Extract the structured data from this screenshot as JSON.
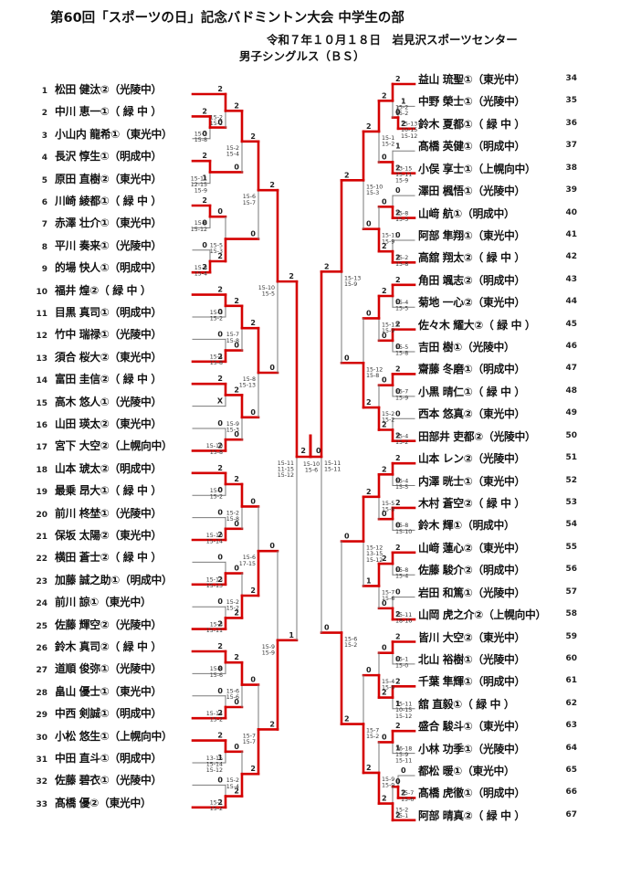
{
  "header": {
    "title": "第60回「スポーツの日」記念バドミントン大会 中学生の部",
    "date_venue": "令和７年１０月１８日　岩見沢スポーツセンター",
    "event": "男子シングルス（ＢＳ）"
  },
  "colors": {
    "winner_line": "#d40000",
    "loser_line": "#7a7a7a",
    "text": "#111111"
  },
  "players_left": [
    {
      "n": 1,
      "name": "松田 健汰",
      "grade": "②",
      "school": "光陵中"
    },
    {
      "n": 2,
      "name": "中川 恵一",
      "grade": "①",
      "school": " 緑 中 "
    },
    {
      "n": 3,
      "name": "小山内 龍希",
      "grade": "①",
      "school": "東光中"
    },
    {
      "n": 4,
      "name": "長沢 惇生",
      "grade": "①",
      "school": "明成中"
    },
    {
      "n": 5,
      "name": "原田 直樹",
      "grade": "②",
      "school": "東光中"
    },
    {
      "n": 6,
      "name": "川崎 綾都",
      "grade": "①",
      "school": " 緑 中 "
    },
    {
      "n": 7,
      "name": "赤澤 壮介",
      "grade": "①",
      "school": "東光中"
    },
    {
      "n": 8,
      "name": "平川 奏来",
      "grade": "①",
      "school": "光陵中"
    },
    {
      "n": 9,
      "name": "的場 快人",
      "grade": "①",
      "school": "明成中"
    },
    {
      "n": 10,
      "name": "福井 煌",
      "grade": "②",
      "school": " 緑 中 "
    },
    {
      "n": 11,
      "name": "目黒 真司",
      "grade": "①",
      "school": "明成中"
    },
    {
      "n": 12,
      "name": "竹中 瑞禄",
      "grade": "①",
      "school": "光陵中"
    },
    {
      "n": 13,
      "name": "須合 桜大",
      "grade": "②",
      "school": "東光中"
    },
    {
      "n": 14,
      "name": "富田 圭信",
      "grade": "②",
      "school": " 緑 中 "
    },
    {
      "n": 15,
      "name": "高木 悠人",
      "grade": "①",
      "school": "光陵中"
    },
    {
      "n": 16,
      "name": "山田 瑛太",
      "grade": "②",
      "school": "東光中"
    },
    {
      "n": 17,
      "name": "宮下 大空",
      "grade": "②",
      "school": "上幌向中"
    },
    {
      "n": 18,
      "name": "山本 琥太",
      "grade": "②",
      "school": "明成中"
    },
    {
      "n": 19,
      "name": "最乗 昂大",
      "grade": "①",
      "school": " 緑 中 "
    },
    {
      "n": 20,
      "name": "前川 柊埜",
      "grade": "①",
      "school": "光陵中"
    },
    {
      "n": 21,
      "name": "保坂 太陽",
      "grade": "②",
      "school": "東光中"
    },
    {
      "n": 22,
      "name": "横田 蒼士",
      "grade": "②",
      "school": " 緑 中 "
    },
    {
      "n": 23,
      "name": "加藤 誠之助",
      "grade": "①",
      "school": "明成中"
    },
    {
      "n": 24,
      "name": "前川 諒",
      "grade": "①",
      "school": "東光中"
    },
    {
      "n": 25,
      "name": "佐藤 輝空",
      "grade": "②",
      "school": "光陵中"
    },
    {
      "n": 26,
      "name": "鈴木 真司",
      "grade": "②",
      "school": " 緑 中 "
    },
    {
      "n": 27,
      "name": "道順 俊弥",
      "grade": "①",
      "school": "光陵中"
    },
    {
      "n": 28,
      "name": "畠山 優士",
      "grade": "①",
      "school": "東光中"
    },
    {
      "n": 29,
      "name": "中西 剣誠",
      "grade": "①",
      "school": "明成中"
    },
    {
      "n": 30,
      "name": "小松 悠生",
      "grade": "①",
      "school": "上幌向中"
    },
    {
      "n": 31,
      "name": "中田 直斗",
      "grade": "①",
      "school": "明成中"
    },
    {
      "n": 32,
      "name": "佐藤 碧衣",
      "grade": "①",
      "school": "光陵中"
    },
    {
      "n": 33,
      "name": "髙橋 優",
      "grade": "②",
      "school": "東光中"
    }
  ],
  "players_right": [
    {
      "n": 34,
      "name": "益山 琉聖",
      "grade": "①",
      "school": "東光中"
    },
    {
      "n": 35,
      "name": "中野 榮士",
      "grade": "①",
      "school": "光陵中"
    },
    {
      "n": 36,
      "name": "鈴木 夏都",
      "grade": "①",
      "school": " 緑 中 "
    },
    {
      "n": 37,
      "name": "髙橋 英健",
      "grade": "①",
      "school": "明成中"
    },
    {
      "n": 38,
      "name": "小俣 享士",
      "grade": "①",
      "school": "上幌向中"
    },
    {
      "n": 39,
      "name": "澤田 楓悟",
      "grade": "①",
      "school": "光陵中"
    },
    {
      "n": 40,
      "name": "山﨑 航",
      "grade": "①",
      "school": "明成中"
    },
    {
      "n": 41,
      "name": "阿部 隼翔",
      "grade": "①",
      "school": "東光中"
    },
    {
      "n": 42,
      "name": "高舘 翔太",
      "grade": "②",
      "school": " 緑 中 "
    },
    {
      "n": 43,
      "name": "角田 颯志",
      "grade": "②",
      "school": "明成中"
    },
    {
      "n": 44,
      "name": "菊地 一心",
      "grade": "②",
      "school": "東光中"
    },
    {
      "n": 45,
      "name": "佐々木 耀大",
      "grade": "②",
      "school": " 緑 中 "
    },
    {
      "n": 46,
      "name": "吉田 樹",
      "grade": "①",
      "school": "光陵中"
    },
    {
      "n": 47,
      "name": "齋藤 冬磨",
      "grade": "①",
      "school": "明成中"
    },
    {
      "n": 48,
      "name": "小黒 晴仁",
      "grade": "①",
      "school": " 緑 中 "
    },
    {
      "n": 49,
      "name": "西本 悠真",
      "grade": "②",
      "school": "東光中"
    },
    {
      "n": 50,
      "name": "田部井 吏都",
      "grade": "②",
      "school": "光陵中"
    },
    {
      "n": 51,
      "name": "山本 レン",
      "grade": "②",
      "school": "光陵中"
    },
    {
      "n": 52,
      "name": "内澤 晄士",
      "grade": "①",
      "school": "東光中"
    },
    {
      "n": 53,
      "name": "木村 蒼空",
      "grade": "②",
      "school": " 緑 中 "
    },
    {
      "n": 54,
      "name": "鈴木 輝",
      "grade": "①",
      "school": "明成中"
    },
    {
      "n": 55,
      "name": "山﨑 蓮心",
      "grade": "②",
      "school": "東光中"
    },
    {
      "n": 56,
      "name": "佐藤 駿介",
      "grade": "②",
      "school": "明成中"
    },
    {
      "n": 57,
      "name": "岩田 和篤",
      "grade": "①",
      "school": "光陵中"
    },
    {
      "n": 58,
      "name": "山岡 虎之介",
      "grade": "②",
      "school": "上幌向中"
    },
    {
      "n": 59,
      "name": "皆川 大空",
      "grade": "②",
      "school": "東光中"
    },
    {
      "n": 60,
      "name": "北山 裕樹",
      "grade": "①",
      "school": "光陵中"
    },
    {
      "n": 61,
      "name": "千葉 隼輝",
      "grade": "①",
      "school": "明成中"
    },
    {
      "n": 62,
      "name": "舘 直毅",
      "grade": "①",
      "school": " 緑 中 "
    },
    {
      "n": 63,
      "name": "盛合 駿斗",
      "grade": "①",
      "school": "東光中"
    },
    {
      "n": 64,
      "name": "小林 功季",
      "grade": "①",
      "school": "光陵中"
    },
    {
      "n": 65,
      "name": "都松 暖",
      "grade": "①",
      "school": "東光中"
    },
    {
      "n": 66,
      "name": "髙橋 虎徹",
      "grade": "①",
      "school": "明成中"
    },
    {
      "n": 67,
      "name": "阿部 晴真",
      "grade": "②",
      "school": " 緑 中 "
    }
  ],
  "matches_left": [
    {
      "id": "L1",
      "r": "p",
      "t": "p2",
      "b": "p3",
      "w": "t",
      "gt": "2",
      "gb": "0",
      "s": [
        "15-1",
        "15-8"
      ]
    },
    {
      "id": "L2",
      "r": "r1",
      "t": "p1",
      "b": "L1",
      "w": "t",
      "gt": "2",
      "gb": "0",
      "s": [
        "15-2",
        "15-2"
      ]
    },
    {
      "id": "L3",
      "r": "p",
      "t": "p4",
      "b": "p5",
      "w": "t",
      "gt": "2",
      "gb": "1",
      "s": [
        "15-11",
        "12-15",
        "15-9"
      ]
    },
    {
      "id": "L4",
      "r": "r2",
      "t": "L2",
      "b": "L3",
      "w": "t",
      "gt": "2",
      "gb": "0",
      "s": [
        "15-2",
        "15-4"
      ]
    },
    {
      "id": "L5",
      "r": "p",
      "t": "p6",
      "b": "p7",
      "w": "t",
      "gt": "2",
      "gb": "0",
      "s": [
        "15-6",
        "15-12"
      ]
    },
    {
      "id": "L6",
      "r": "p",
      "t": "p8",
      "b": "p9",
      "w": "b",
      "gt": "0",
      "gb": "2",
      "s": [
        "15-8",
        "15-4"
      ]
    },
    {
      "id": "L7",
      "r": "r1",
      "t": "L5",
      "b": "L6",
      "w": "b",
      "gt": "0",
      "gb": "2",
      "s": [
        "15-5",
        "15-3"
      ]
    },
    {
      "id": "L8",
      "r": "bf",
      "t": "L4",
      "b": "L7",
      "w": "t",
      "gt": "2",
      "gb": "0",
      "s": [
        "15-6",
        "15-7"
      ]
    },
    {
      "id": "L9",
      "r": "r1",
      "t": "p10",
      "b": "p11",
      "w": "t",
      "gt": "2",
      "gb": "0",
      "s": [
        "15-3",
        "15-2"
      ]
    },
    {
      "id": "L10",
      "r": "r1",
      "t": "p12",
      "b": "p13",
      "w": "b",
      "gt": "0",
      "gb": "2",
      "s": [
        "15-4",
        "15-8"
      ]
    },
    {
      "id": "L11",
      "r": "r2",
      "t": "L9",
      "b": "L10",
      "w": "t",
      "gt": "2",
      "gb": "0",
      "s": [
        "15-7",
        "15-8"
      ]
    },
    {
      "id": "L12",
      "r": "r1",
      "t": "p14",
      "b": "p15",
      "w": "t",
      "gt": "2",
      "gb": "X",
      "s": []
    },
    {
      "id": "L13",
      "r": "r1",
      "t": "p16",
      "b": "p17",
      "w": "b",
      "gt": "0",
      "gb": "2",
      "s": [
        "15-10",
        "15-8"
      ]
    },
    {
      "id": "L14",
      "r": "r2",
      "t": "L12",
      "b": "L13",
      "w": "t",
      "gt": "2",
      "gb": "0",
      "s": [
        "15-9",
        "15-3"
      ]
    },
    {
      "id": "L15",
      "r": "bf",
      "t": "L11",
      "b": "L14",
      "w": "t",
      "gt": "2",
      "gb": "0",
      "s": [
        "15-8",
        "15-13"
      ]
    },
    {
      "id": "L16",
      "r": "qf",
      "t": "L8",
      "b": "L15",
      "w": "t",
      "gt": "2",
      "gb": "0",
      "s": [
        "15-10",
        "15-5"
      ]
    },
    {
      "id": "L17",
      "r": "r1",
      "t": "p18",
      "b": "p19",
      "w": "t",
      "gt": "2",
      "gb": "0",
      "s": [
        "15-7",
        "15-2"
      ]
    },
    {
      "id": "L18",
      "r": "r1",
      "t": "p20",
      "b": "p21",
      "w": "b",
      "gt": "0",
      "gb": "2",
      "s": [
        "15-10",
        "15-14"
      ]
    },
    {
      "id": "L19",
      "r": "r2",
      "t": "L17",
      "b": "L18",
      "w": "t",
      "gt": "2",
      "gb": "0",
      "s": [
        "15-2",
        "15-8"
      ]
    },
    {
      "id": "L20",
      "r": "r1",
      "t": "p22",
      "b": "p23",
      "w": "b",
      "gt": "0",
      "gb": "2",
      "s": [
        "15-13",
        "15-13"
      ]
    },
    {
      "id": "L21",
      "r": "r1",
      "t": "p24",
      "b": "p25",
      "w": "b",
      "gt": "0",
      "gb": "2",
      "s": [
        "15-3",
        "15-11"
      ]
    },
    {
      "id": "L22",
      "r": "r2",
      "t": "L20",
      "b": "L21",
      "w": "b",
      "gt": "0",
      "gb": "2",
      "s": [
        "15-2",
        "15-2"
      ]
    },
    {
      "id": "L23",
      "r": "bf",
      "t": "L19",
      "b": "L22",
      "w": "b",
      "gt": "0",
      "gb": "2",
      "s": [
        "15-6",
        "17-15"
      ]
    },
    {
      "id": "L24",
      "r": "r1",
      "t": "p26",
      "b": "p27",
      "w": "t",
      "gt": "2",
      "gb": "0",
      "s": [
        "15-8",
        "15-6"
      ]
    },
    {
      "id": "L25",
      "r": "r1",
      "t": "p28",
      "b": "p29",
      "w": "b",
      "gt": "0",
      "gb": "2",
      "s": [
        "15-14",
        "15-2"
      ]
    },
    {
      "id": "L26",
      "r": "r2",
      "t": "L24",
      "b": "L25",
      "w": "t",
      "gt": "2",
      "gb": "0",
      "s": [
        "15-6",
        "15-6"
      ]
    },
    {
      "id": "L27",
      "r": "r1",
      "t": "p30",
      "b": "p31",
      "w": "t",
      "gt": "2",
      "gb": "1",
      "s": [
        "13-15",
        "15-14",
        "15-12"
      ]
    },
    {
      "id": "L28",
      "r": "r1",
      "t": "p32",
      "b": "p33",
      "w": "b",
      "gt": "0",
      "gb": "2",
      "s": [
        "15-1",
        "15-2"
      ]
    },
    {
      "id": "L29",
      "r": "r2",
      "t": "L27",
      "b": "L28",
      "w": "b",
      "gt": "0",
      "gb": "2",
      "s": [
        "15-2",
        "15-4"
      ]
    },
    {
      "id": "L30",
      "r": "bf",
      "t": "L26",
      "b": "L29",
      "w": "b",
      "gt": "0",
      "gb": "2",
      "s": [
        "15-7",
        "15-7"
      ]
    },
    {
      "id": "L31",
      "r": "qf",
      "t": "L23",
      "b": "L30",
      "w": "b",
      "gt": "0",
      "gb": "2",
      "s": [
        "15-9",
        "15-9"
      ]
    },
    {
      "id": "L32",
      "r": "sf",
      "t": "L16",
      "b": "L31",
      "w": "t",
      "gt": "2",
      "gb": "1",
      "s": [
        "15-11",
        "11-15",
        "15-12"
      ]
    }
  ],
  "matches_right": [
    {
      "id": "R1",
      "r": "p",
      "t": "p35",
      "b": "p36",
      "w": "b",
      "gt": "1",
      "gb": "2",
      "s": [
        "15-13",
        "10-15",
        "15-12"
      ]
    },
    {
      "id": "R2",
      "r": "r1",
      "t": "p34",
      "b": "R1",
      "w": "t",
      "gt": "2",
      "gb": "0",
      "s": [
        "15-2",
        "15-2"
      ]
    },
    {
      "id": "R3",
      "r": "r1",
      "t": "p37",
      "b": "p38",
      "w": "b",
      "gt": "1",
      "gb": "2",
      "s": [
        "13-15",
        "15-11",
        "15-9"
      ]
    },
    {
      "id": "R4",
      "r": "r2",
      "t": "R2",
      "b": "R3",
      "w": "t",
      "gt": "2",
      "gb": "0",
      "s": [
        "15-1",
        "15-2"
      ]
    },
    {
      "id": "R5",
      "r": "r1",
      "t": "p39",
      "b": "p40",
      "w": "b",
      "gt": "0",
      "gb": "2",
      "s": [
        "15-8",
        "15-5"
      ]
    },
    {
      "id": "R6",
      "r": "r1",
      "t": "p41",
      "b": "p42",
      "w": "b",
      "gt": "0",
      "gb": "2",
      "s": [
        "15-2",
        "15-8"
      ]
    },
    {
      "id": "R7",
      "r": "r2",
      "t": "R5",
      "b": "R6",
      "w": "b",
      "gt": "0",
      "gb": "2",
      "s": [
        "15-11",
        "15-9"
      ]
    },
    {
      "id": "R8",
      "r": "bf",
      "t": "R4",
      "b": "R7",
      "w": "t",
      "gt": "2",
      "gb": "0",
      "s": [
        "15-10",
        "15-3"
      ]
    },
    {
      "id": "R9",
      "r": "r1",
      "t": "p43",
      "b": "p44",
      "w": "t",
      "gt": "2",
      "gb": "0",
      "s": [
        "15-4",
        "15-5"
      ]
    },
    {
      "id": "R10",
      "r": "r1",
      "t": "p45",
      "b": "p46",
      "w": "t",
      "gt": "2",
      "gb": "0",
      "s": [
        "15-5",
        "15-8"
      ]
    },
    {
      "id": "R11",
      "r": "r2",
      "t": "R9",
      "b": "R10",
      "w": "t",
      "gt": "2",
      "gb": "0",
      "s": [
        "15-13",
        "15-9"
      ]
    },
    {
      "id": "R12",
      "r": "r1",
      "t": "p47",
      "b": "p48",
      "w": "t",
      "gt": "2",
      "gb": "0",
      "s": [
        "15-7",
        "15-9"
      ]
    },
    {
      "id": "R13",
      "r": "r1",
      "t": "p49",
      "b": "p50",
      "w": "b",
      "gt": "0",
      "gb": "2",
      "s": [
        "15-4",
        "15-2"
      ]
    },
    {
      "id": "R14",
      "r": "r2",
      "t": "R12",
      "b": "R13",
      "w": "b",
      "gt": "0",
      "gb": "2",
      "s": [
        "15-2",
        "15-2"
      ]
    },
    {
      "id": "R15",
      "r": "bf",
      "t": "R11",
      "b": "R14",
      "w": "b",
      "gt": "0",
      "gb": "2",
      "s": [
        "15-12",
        "15-8"
      ]
    },
    {
      "id": "R16",
      "r": "qf",
      "t": "R8",
      "b": "R15",
      "w": "t",
      "gt": "2",
      "gb": "0",
      "s": [
        "15-13",
        "15-9"
      ]
    },
    {
      "id": "R17",
      "r": "r1",
      "t": "p51",
      "b": "p52",
      "w": "t",
      "gt": "2",
      "gb": "0",
      "s": [
        "15-4",
        "15-5"
      ]
    },
    {
      "id": "R18",
      "r": "r1",
      "t": "p53",
      "b": "p54",
      "w": "t",
      "gt": "2",
      "gb": "0",
      "s": [
        "15-8",
        "15-10"
      ]
    },
    {
      "id": "R19",
      "r": "r2",
      "t": "R17",
      "b": "R18",
      "w": "t",
      "gt": "2",
      "gb": "0",
      "s": [
        "15-5",
        "15-8"
      ]
    },
    {
      "id": "R20",
      "r": "r1",
      "t": "p55",
      "b": "p56",
      "w": "t",
      "gt": "2",
      "gb": "0",
      "s": [
        "15-8",
        "15-4"
      ]
    },
    {
      "id": "R21",
      "r": "r1",
      "t": "p57",
      "b": "p58",
      "w": "b",
      "gt": "0",
      "gb": "2",
      "s": [
        "15-11",
        "18-16"
      ]
    },
    {
      "id": "R22",
      "r": "r2",
      "t": "R20",
      "b": "R21",
      "w": "t",
      "gt": "2",
      "gb": "0",
      "s": [
        "15-7",
        "15-6"
      ]
    },
    {
      "id": "R23",
      "r": "bf",
      "t": "R19",
      "b": "R22",
      "w": "t",
      "gt": "2",
      "gb": "1",
      "s": [
        "15-12",
        "13-15",
        "15-12"
      ]
    },
    {
      "id": "R24",
      "r": "r1",
      "t": "p59",
      "b": "p60",
      "w": "t",
      "gt": "2",
      "gb": "0",
      "s": [
        "15-1",
        "15-0"
      ]
    },
    {
      "id": "R25",
      "r": "r1",
      "t": "p61",
      "b": "p62",
      "w": "t",
      "gt": "2",
      "gb": "1",
      "s": [
        "15-11",
        "10-15",
        "15-12"
      ]
    },
    {
      "id": "R26",
      "r": "r2",
      "t": "R24",
      "b": "R25",
      "w": "b",
      "gt": "0",
      "gb": "2",
      "s": [
        "15-4",
        "15-6"
      ]
    },
    {
      "id": "R27",
      "r": "r1",
      "t": "p63",
      "b": "p64",
      "w": "t",
      "gt": "2",
      "gb": "1",
      "s": [
        "16-18",
        "15-9",
        "15-11"
      ]
    },
    {
      "id": "R28",
      "r": "p",
      "t": "p65",
      "b": "p66",
      "w": "b",
      "gt": "0",
      "gb": "2",
      "s": [
        "15-7",
        "15-6"
      ]
    },
    {
      "id": "R29",
      "r": "r1",
      "t": "R28",
      "b": "p67",
      "w": "b",
      "gt": "0",
      "gb": "2",
      "s": [
        "15-2",
        "15-1"
      ]
    },
    {
      "id": "R30",
      "r": "r2",
      "t": "R27",
      "b": "R29",
      "w": "b",
      "gt": "0",
      "gb": "2",
      "s": [
        "15-9",
        "15-9"
      ]
    },
    {
      "id": "R31",
      "r": "bf",
      "t": "R26",
      "b": "R30",
      "w": "b",
      "gt": "0",
      "gb": "2",
      "s": [
        "15-7",
        "15-2"
      ]
    },
    {
      "id": "R32",
      "r": "qf",
      "t": "R23",
      "b": "R31",
      "w": "b",
      "gt": "0",
      "gb": "2",
      "s": [
        "15-6",
        "15-2"
      ]
    },
    {
      "id": "R33",
      "r": "sf",
      "t": "R16",
      "b": "R32",
      "w": "t",
      "gt": "2",
      "gb": "0",
      "s": [
        "15-11",
        "15-11"
      ]
    }
  ],
  "final": {
    "g_left": "2",
    "g_right": "0",
    "scores": [
      "15-10",
      "15-6"
    ]
  }
}
